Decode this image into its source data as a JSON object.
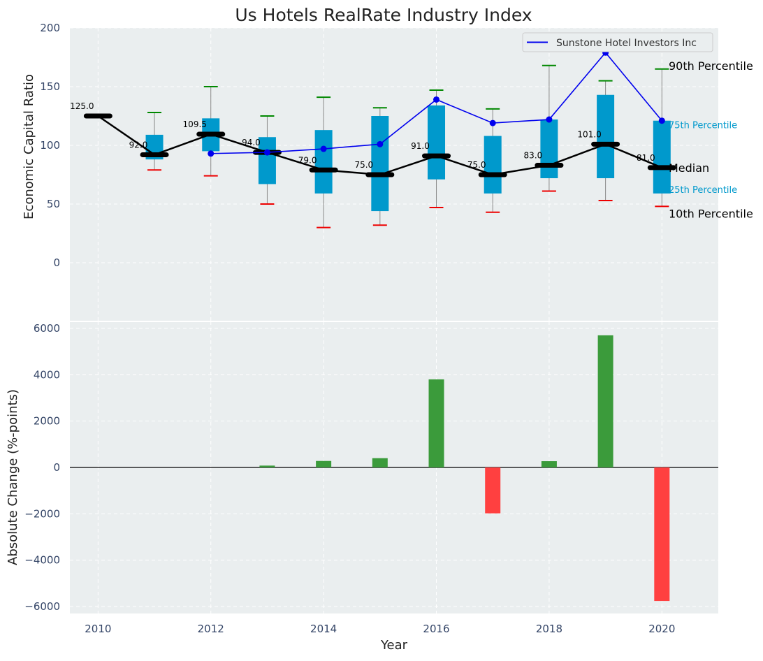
{
  "chart_data": [
    {
      "type": "box",
      "title": "Us Hotels RealRate Industry Index",
      "xlabel": "",
      "ylabel": "Economic Capital Ratio",
      "ylim": [
        -50,
        200
      ],
      "yticks": [
        0,
        50,
        100,
        150,
        200
      ],
      "grid": true,
      "legend": {
        "position": "top-right",
        "entries": [
          "Sunstone Hotel Investors Inc"
        ]
      },
      "boxes": [
        {
          "year": 2010,
          "p10": null,
          "p25": null,
          "median": 125,
          "p75": null,
          "p90": null,
          "label": "125.0"
        },
        {
          "year": 2011,
          "p10": 79,
          "p25": 88,
          "median": 92,
          "p75": 109,
          "p90": 128,
          "label": "92.0"
        },
        {
          "year": 2012,
          "p10": 74,
          "p25": 95,
          "median": 109.5,
          "p75": 123,
          "p90": 150,
          "label": "109.5"
        },
        {
          "year": 2013,
          "p10": 50,
          "p25": 67,
          "median": 94,
          "p75": 107,
          "p90": 125,
          "label": "94.0"
        },
        {
          "year": 2014,
          "p10": 30,
          "p25": 59,
          "median": 79,
          "p75": 113,
          "p90": 141,
          "label": "79.0"
        },
        {
          "year": 2015,
          "p10": 32,
          "p25": 44,
          "median": 75,
          "p75": 125,
          "p90": 132,
          "label": "75.0"
        },
        {
          "year": 2016,
          "p10": 47,
          "p25": 71,
          "median": 91,
          "p75": 134,
          "p90": 147,
          "label": "91.0"
        },
        {
          "year": 2017,
          "p10": 43,
          "p25": 59,
          "median": 75,
          "p75": 108,
          "p90": 131,
          "label": "75.0"
        },
        {
          "year": 2018,
          "p10": 61,
          "p25": 72,
          "median": 83,
          "p75": 122,
          "p90": 168,
          "label": "83.0"
        },
        {
          "year": 2019,
          "p10": 53,
          "p25": 72,
          "median": 101,
          "p75": 143,
          "p90": 155,
          "label": "101.0"
        },
        {
          "year": 2020,
          "p10": 48,
          "p25": 59,
          "median": 81,
          "p75": 121,
          "p90": 165,
          "label": "81.0"
        }
      ],
      "series": [
        {
          "name": "Sunstone Hotel Investors Inc",
          "color": "#0000ee",
          "x": [
            2012,
            2013,
            2014,
            2015,
            2016,
            2017,
            2018,
            2019,
            2020
          ],
          "values": [
            93,
            94,
            97,
            101,
            139,
            119,
            122,
            179,
            121
          ]
        }
      ],
      "annotations": [
        {
          "text": "90th Percentile",
          "color": "#000000",
          "size": "large",
          "value": 168
        },
        {
          "text": "75th Percentile",
          "color": "#0099cc",
          "size": "small",
          "value": 117
        },
        {
          "text": "Median",
          "color": "#000000",
          "size": "large",
          "value": 81
        },
        {
          "text": "25th Percentile",
          "color": "#0099cc",
          "size": "small",
          "value": 62
        },
        {
          "text": "10th Percentile",
          "color": "#000000",
          "size": "large",
          "value": 42
        }
      ]
    },
    {
      "type": "bar",
      "xlabel": "Year",
      "ylabel": "Absolute Change (%-points)",
      "ylim": [
        -6300,
        6300
      ],
      "yticks": [
        -6000,
        -4000,
        -2000,
        0,
        2000,
        4000,
        6000
      ],
      "ytick_labels": [
        "−6000",
        "−4000",
        "−2000",
        "0",
        "2000",
        "4000",
        "6000"
      ],
      "categories": [
        2010,
        2011,
        2012,
        2013,
        2014,
        2015,
        2016,
        2017,
        2018,
        2019,
        2020
      ],
      "values": [
        0,
        0,
        0,
        80,
        280,
        400,
        3800,
        -1980,
        270,
        5700,
        -5760
      ],
      "xlim": [
        2009.5,
        2021
      ],
      "xticks": [
        2010,
        2012,
        2014,
        2016,
        2018,
        2020
      ],
      "grid": true
    }
  ],
  "colors": {
    "axes_bg": "#eaeeef",
    "grid": "#ffffff",
    "box_fill": "#0099cc",
    "median_line": "#000000",
    "whisker": "#888888",
    "cap_high": "#008800",
    "cap_low": "#ee0000",
    "bar_pos": "#3b9b3b",
    "bar_neg": "#ff4040",
    "tick_text": "#334466"
  }
}
